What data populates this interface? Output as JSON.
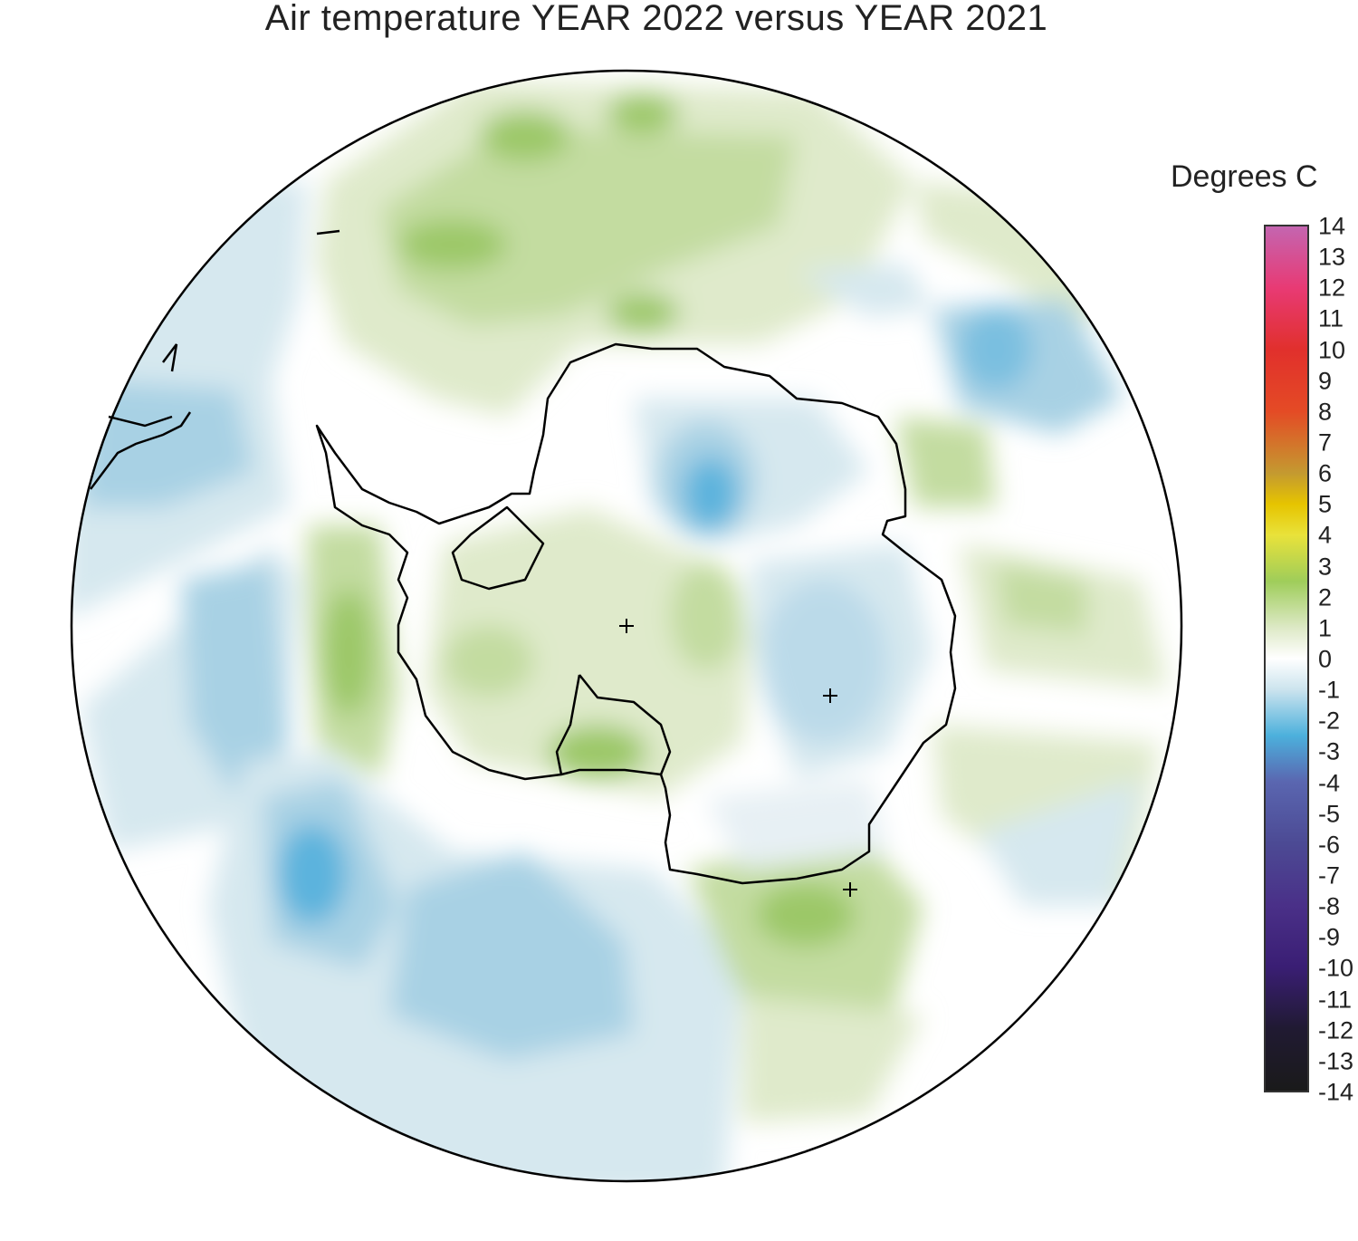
{
  "title": "Air temperature YEAR 2022 versus YEAR 2021",
  "legend": {
    "title": "Degrees C",
    "ticks": [
      "14",
      "13",
      "12",
      "11",
      "10",
      "9",
      "8",
      "7",
      "6",
      "5",
      "4",
      "3",
      "2",
      "1",
      "0",
      "-1",
      "-2",
      "-3",
      "-4",
      "-5",
      "-6",
      "-7",
      "-8",
      "-9",
      "-10",
      "-11",
      "-12",
      "-13",
      "-14"
    ],
    "range": [
      -14,
      14
    ],
    "colors": {
      "14": "#c465b0",
      "12": "#e83a74",
      "10": "#e1302c",
      "8": "#e44b25",
      "6": "#c49a30",
      "5": "#e6c400",
      "4": "#e9e23a",
      "2.5": "#9fcd5a",
      "1": "#dde9c6",
      "0": "#ffffff",
      "-1": "#cce4ee",
      "-2.5": "#4cb0dc",
      "-4": "#5a66b0",
      "-6": "#4c4a94",
      "-8": "#4a3088",
      "-10": "#3a1e74",
      "-12": "#201a32",
      "-14": "#1a1a1a"
    }
  },
  "map": {
    "projection": "south polar stereographic",
    "colors": {
      "background": "#ffffff",
      "weak_warm": "#dfeacb",
      "warm": "#c3dca0",
      "strong_warm": "#9cc868",
      "weak_cool": "#d6e8ef",
      "cool": "#a8d1e4",
      "strong_cool": "#5cb3dd",
      "coastline": "#000000"
    }
  }
}
